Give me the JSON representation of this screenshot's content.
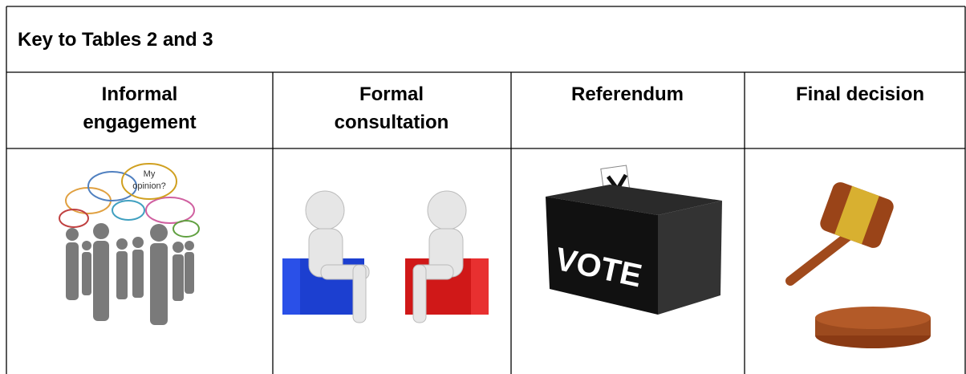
{
  "table": {
    "title": "Key to Tables 2 and 3",
    "headers": [
      [
        "Informal",
        "engagement"
      ],
      [
        "Formal",
        "consultation"
      ],
      [
        "Referendum"
      ],
      [
        "Final decision"
      ]
    ],
    "image_texts": {
      "bubble": [
        "My",
        "opinion?"
      ],
      "ballot_box": "VOTE"
    }
  }
}
